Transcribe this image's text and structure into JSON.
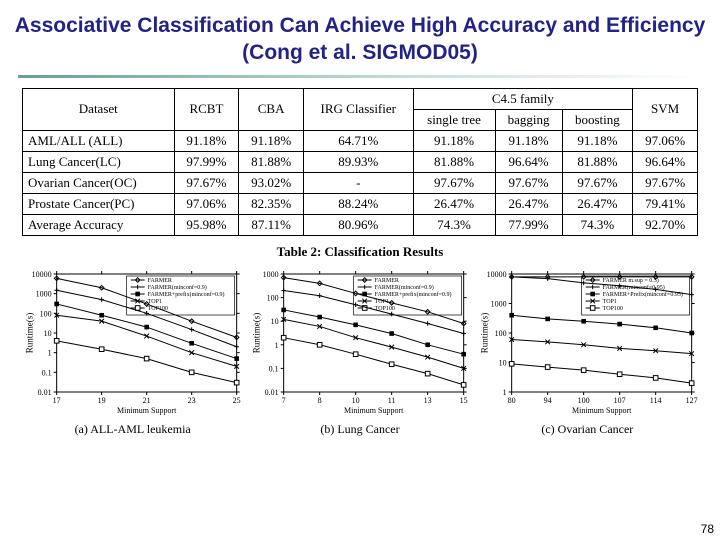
{
  "title": "Associative Classification Can Achieve High Accuracy and Efficiency (Cong et al. SIGMOD05)",
  "title_color": "#222288",
  "page_number": "78",
  "table": {
    "columns_top": [
      "Dataset",
      "RCBT",
      "CBA",
      "IRG Classifier",
      "C4.5 family",
      "SVM"
    ],
    "c45_sub": [
      "single tree",
      "bagging",
      "boosting"
    ],
    "rows": [
      {
        "label": "AML/ALL (ALL)",
        "cells": [
          "91.18%",
          "91.18%",
          "64.71%",
          "91.18%",
          "91.18%",
          "91.18%",
          "97.06%"
        ]
      },
      {
        "label": "Lung Cancer(LC)",
        "cells": [
          "97.99%",
          "81.88%",
          "89.93%",
          "81.88%",
          "96.64%",
          "81.88%",
          "96.64%"
        ]
      },
      {
        "label": "Ovarian Cancer(OC)",
        "cells": [
          "97.67%",
          "93.02%",
          "-",
          "97.67%",
          "97.67%",
          "97.67%",
          "97.67%"
        ]
      },
      {
        "label": "Prostate Cancer(PC)",
        "cells": [
          "97.06%",
          "82.35%",
          "88.24%",
          "26.47%",
          "26.47%",
          "26.47%",
          "79.41%"
        ]
      },
      {
        "label": "Average Accuracy",
        "cells": [
          "95.98%",
          "87.11%",
          "80.96%",
          "74.3%",
          "77.99%",
          "74.3%",
          "92.70%"
        ]
      }
    ],
    "caption": "Table 2: Classification Results"
  },
  "legend": {
    "items": [
      "FARMER",
      "FARMER(minconf=0.9)",
      "FARMER+prefix(minconf=0.9)",
      "TOP1",
      "TOP100"
    ],
    "items_c": [
      "FARMER m.sup = 0.5)",
      "FARMER(minconf=0.95)",
      "FARMER+Prefix(minconf=0.95)",
      "TOP1",
      "TOP100"
    ]
  },
  "charts": [
    {
      "type": "line",
      "caption": "(a) ALL-AML leukemia",
      "xlabel": "Minimum Support",
      "ylabel": "Runtime(s)",
      "xticks": [
        "17",
        "19",
        "21",
        "23",
        "25"
      ],
      "yticks": [
        "0.01",
        "0.1",
        "1",
        "10",
        "100",
        "1000",
        "10000"
      ],
      "yscale": "log",
      "colors": {
        "axis": "#000000",
        "line": "#000000",
        "bg": "#ffffff"
      },
      "series": [
        {
          "name": "FARMER",
          "marker": "diamond",
          "y": [
            6000,
            2000,
            300,
            40,
            6
          ]
        },
        {
          "name": "FARMER(minconf=0.9)",
          "marker": "plus",
          "y": [
            1500,
            500,
            100,
            15,
            2
          ]
        },
        {
          "name": "FARMER+prefix(minconf=0.9)",
          "marker": "square",
          "y": [
            300,
            80,
            20,
            3,
            0.5
          ]
        },
        {
          "name": "TOP1",
          "marker": "x",
          "y": [
            80,
            40,
            7,
            1,
            0.2
          ]
        },
        {
          "name": "TOP100",
          "marker": "openSquare",
          "y": [
            4,
            1.5,
            0.5,
            0.1,
            0.03
          ]
        }
      ]
    },
    {
      "type": "line",
      "caption": "(b) Lung Cancer",
      "xlabel": "Minimum Support",
      "ylabel": "Runtime(s)",
      "xticks": [
        "7",
        "8",
        "10",
        "11",
        "13",
        "15"
      ],
      "yticks": [
        "0.01",
        "0.1",
        "1",
        "10",
        "100",
        "1000"
      ],
      "yscale": "log",
      "colors": {
        "axis": "#000000",
        "line": "#000000",
        "bg": "#ffffff"
      },
      "series": [
        {
          "name": "FARMER",
          "marker": "diamond",
          "y": [
            700,
            400,
            150,
            60,
            25,
            8
          ]
        },
        {
          "name": "FARMER(minconf=0.9)",
          "marker": "plus",
          "y": [
            200,
            120,
            50,
            20,
            8,
            3
          ]
        },
        {
          "name": "FARMER+prefix(minconf=0.9)",
          "marker": "square",
          "y": [
            30,
            15,
            7,
            3,
            1,
            0.4
          ]
        },
        {
          "name": "TOP1",
          "marker": "x",
          "y": [
            12,
            6,
            2,
            0.8,
            0.3,
            0.1
          ]
        },
        {
          "name": "TOP100",
          "marker": "openSquare",
          "y": [
            2,
            1,
            0.4,
            0.15,
            0.06,
            0.02
          ]
        }
      ]
    },
    {
      "type": "line",
      "caption": "(c) Ovarian Cancer",
      "xlabel": "Minimum Support",
      "ylabel": "Runtime(s)",
      "xticks": [
        "80",
        "94",
        "100",
        "107",
        "114",
        "127"
      ],
      "yticks": [
        "1",
        "10",
        "100",
        "1000",
        "10000"
      ],
      "yscale": "log",
      "colors": {
        "axis": "#000000",
        "line": "#000000",
        "bg": "#ffffff"
      },
      "series": [
        {
          "name": "FARMER m.sup=0.5",
          "marker": "diamond",
          "y": [
            8000,
            8000,
            8000,
            8000,
            8000,
            8000
          ]
        },
        {
          "name": "FARMER(minconf=0.95)",
          "marker": "plus",
          "y": [
            8000,
            7000,
            5000,
            4000,
            3000,
            2000
          ]
        },
        {
          "name": "FARMER+Prefix(minconf=0.95)",
          "marker": "square",
          "y": [
            400,
            300,
            250,
            200,
            150,
            100
          ]
        },
        {
          "name": "TOP1",
          "marker": "x",
          "y": [
            60,
            50,
            40,
            30,
            25,
            20
          ]
        },
        {
          "name": "TOP100",
          "marker": "openSquare",
          "y": [
            9,
            7,
            5.5,
            4,
            3,
            2
          ]
        }
      ]
    }
  ]
}
